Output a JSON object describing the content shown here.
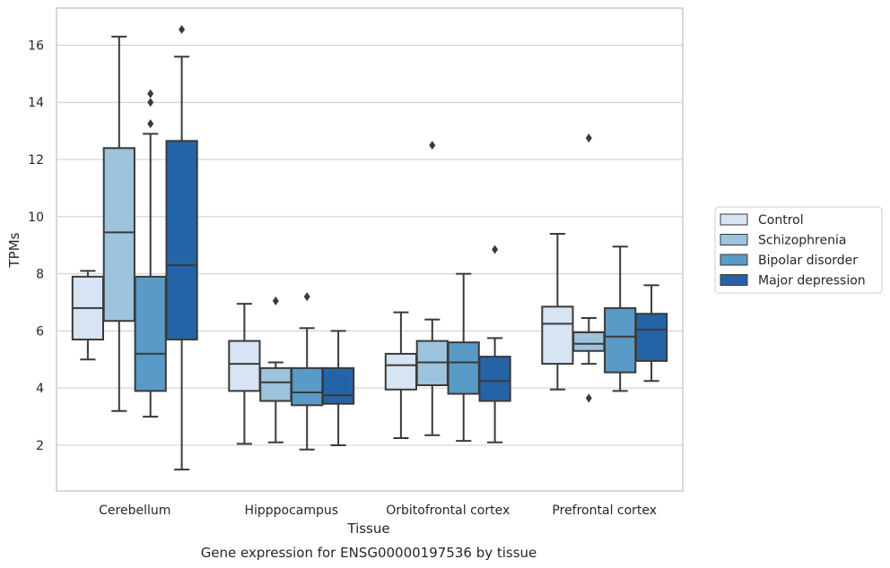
{
  "chart_data": {
    "type": "box",
    "caption": "Gene expression for ENSG00000197536 by tissue",
    "xlabel": "Tissue",
    "ylabel": "TPMs",
    "ylim": [
      0.4,
      17.3
    ],
    "yticks": [
      2,
      4,
      6,
      8,
      10,
      12,
      14,
      16
    ],
    "grid": "horizontal",
    "legend_position": "right",
    "categories": [
      "Cerebellum",
      "Hipppocampus",
      "Orbitofrontal cortex",
      "Prefrontal cortex"
    ],
    "series": [
      {
        "name": "Control",
        "color": "#d6e4f3",
        "boxes": [
          {
            "whislo": 5.0,
            "q1": 5.7,
            "med": 6.8,
            "q3": 7.9,
            "whishi": 8.1,
            "fliers": []
          },
          {
            "whislo": 2.05,
            "q1": 3.9,
            "med": 4.85,
            "q3": 5.65,
            "whishi": 6.95,
            "fliers": []
          },
          {
            "whislo": 2.25,
            "q1": 3.95,
            "med": 4.8,
            "q3": 5.2,
            "whishi": 6.65,
            "fliers": []
          },
          {
            "whislo": 3.95,
            "q1": 4.85,
            "med": 6.25,
            "q3": 6.85,
            "whishi": 9.4,
            "fliers": []
          }
        ]
      },
      {
        "name": "Schizophrenia",
        "color": "#9dc3dd",
        "boxes": [
          {
            "whislo": 3.2,
            "q1": 6.35,
            "med": 9.45,
            "q3": 12.4,
            "whishi": 16.3,
            "fliers": []
          },
          {
            "whislo": 2.1,
            "q1": 3.55,
            "med": 4.2,
            "q3": 4.7,
            "whishi": 4.9,
            "fliers": [
              7.05
            ]
          },
          {
            "whislo": 2.35,
            "q1": 4.1,
            "med": 4.9,
            "q3": 5.65,
            "whishi": 6.4,
            "fliers": [
              12.5
            ]
          },
          {
            "whislo": 4.85,
            "q1": 5.3,
            "med": 5.55,
            "q3": 5.95,
            "whishi": 6.45,
            "fliers": [
              3.65,
              12.75
            ]
          }
        ]
      },
      {
        "name": "Bipolar disorder",
        "color": "#5a9ac6",
        "boxes": [
          {
            "whislo": 3.0,
            "q1": 3.9,
            "med": 5.2,
            "q3": 7.9,
            "whishi": 12.9,
            "fliers": [
              13.25,
              14.0,
              14.3
            ]
          },
          {
            "whislo": 1.85,
            "q1": 3.4,
            "med": 3.85,
            "q3": 4.7,
            "whishi": 6.1,
            "fliers": [
              7.2
            ]
          },
          {
            "whislo": 2.15,
            "q1": 3.8,
            "med": 4.9,
            "q3": 5.6,
            "whishi": 8.0,
            "fliers": []
          },
          {
            "whislo": 3.9,
            "q1": 4.55,
            "med": 5.8,
            "q3": 6.8,
            "whishi": 8.95,
            "fliers": []
          }
        ]
      },
      {
        "name": "Major depression",
        "color": "#2464a6",
        "boxes": [
          {
            "whislo": 1.15,
            "q1": 5.7,
            "med": 8.3,
            "q3": 12.65,
            "whishi": 15.6,
            "fliers": [
              16.55
            ]
          },
          {
            "whislo": 2.0,
            "q1": 3.45,
            "med": 3.75,
            "q3": 4.7,
            "whishi": 6.0,
            "fliers": []
          },
          {
            "whislo": 2.1,
            "q1": 3.55,
            "med": 4.25,
            "q3": 5.1,
            "whishi": 5.75,
            "fliers": [
              8.85
            ]
          },
          {
            "whislo": 4.25,
            "q1": 4.95,
            "med": 6.05,
            "q3": 6.6,
            "whishi": 7.6,
            "fliers": []
          }
        ]
      }
    ]
  }
}
